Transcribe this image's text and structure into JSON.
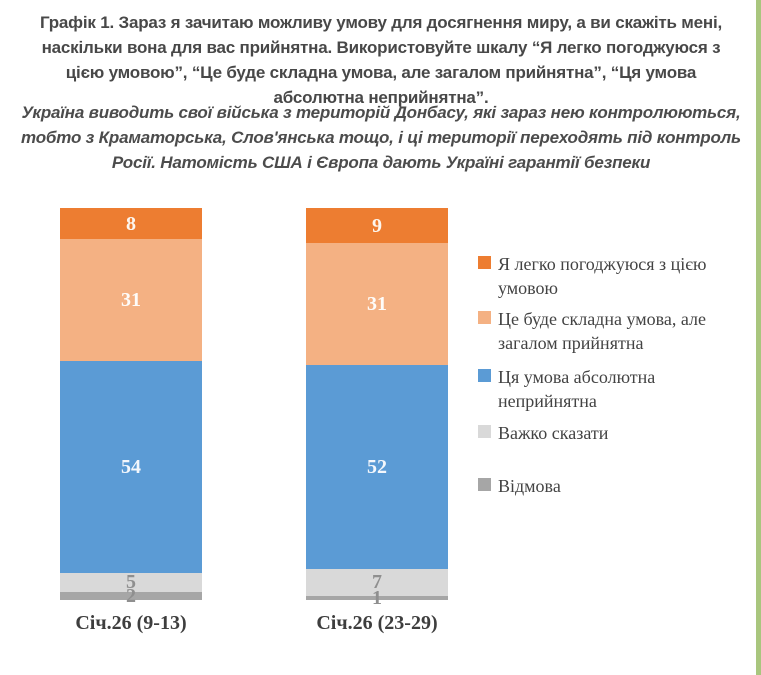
{
  "chart_data": {
    "type": "bar",
    "subtype": "stacked-vertical",
    "title": "Графік 1. Зараз я зачитаю можливу умову для досягнення миру, а ви скажіть мені, наскільки вона для вас прийнятна. Використовуйте шкалу “Я легко погоджуюся з цією умовою”, “Це буде складна умова, але загалом прийнятна”, “Ця умова абсолютна неприйнятна”.",
    "subtitle": "Україна виводить свої війська з територій Донбасу, які зараз нею контролюються, тобто з Краматорська, Слов'янська тощо, і ці території переходять під контроль Росії. Натомість США і Європа дають Україні гарантії безпеки",
    "categories": [
      "Січ.26 (9-13)",
      "Січ.26 (23-29)"
    ],
    "series": [
      {
        "name": "Я легко погоджуюся з цією умовою",
        "color": "#ED7D31",
        "label_color": "#FDF6EE",
        "values": [
          8,
          9
        ]
      },
      {
        "name": "Це буде складна умова, але загалом прийнятна",
        "color": "#F4B183",
        "label_color": "#FEFCF9",
        "values": [
          31,
          31
        ]
      },
      {
        "name": "Ця умова абсолютна неприйнятна",
        "color": "#5B9BD5",
        "label_color": "#F3F7FC",
        "values": [
          54,
          52
        ]
      },
      {
        "name": "Важко сказати",
        "color": "#D9D9D9",
        "label_color": "#8F8F8F",
        "values": [
          5,
          7
        ]
      },
      {
        "name": "Відмова",
        "color": "#A6A6A6",
        "label_color": "#8F8F8F",
        "values": [
          2,
          1
        ]
      }
    ],
    "ylim": [
      0,
      100
    ],
    "grid": false,
    "legend_position": "right",
    "accent_border_color": "#A9C67E"
  }
}
